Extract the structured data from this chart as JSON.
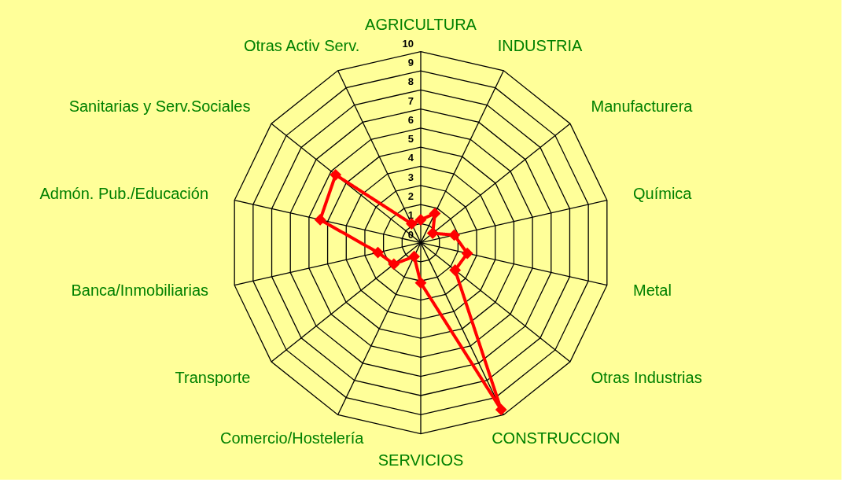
{
  "chart_data": {
    "type": "radar",
    "categories": [
      "AGRICULTURA",
      "INDUSTRIA",
      "Manufacturera",
      "Química",
      "Metal",
      "Otras Industrias",
      "CONSTRUCCION",
      "SERVICIOS",
      "Comercio/Hostelería",
      "Transporte",
      "Banca/Inmobiliarias",
      "Admón. Pub./Educación",
      "Sanitarias y Serv.Sociales",
      "Otras Activ Serv."
    ],
    "series": [
      {
        "color": "#ff0000",
        "values": [
          1.2,
          1.7,
          0.8,
          1.8,
          2.5,
          2.3,
          9.7,
          2.1,
          0.8,
          1.8,
          2.3,
          5.4,
          5.7,
          1.1
        ]
      }
    ],
    "ylim": [
      0,
      10
    ],
    "yticks": [
      0,
      1,
      2,
      3,
      4,
      5,
      6,
      7,
      8,
      9,
      10
    ],
    "marker": "diamond",
    "line_style": "solid",
    "grid": true
  }
}
